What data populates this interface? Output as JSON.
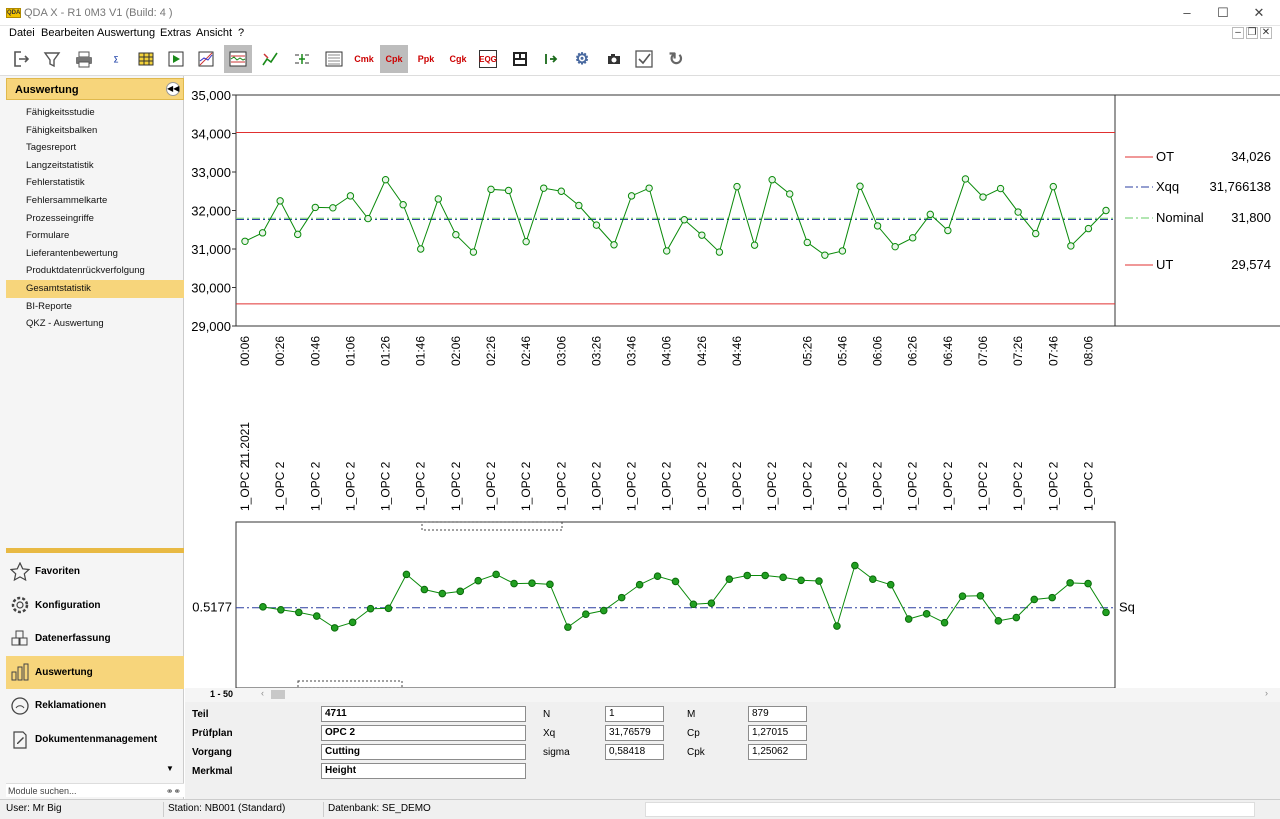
{
  "window": {
    "title": "QDA X - R1 0M3 V1 (Build: 4 )",
    "logo_text": "QDA"
  },
  "menu": [
    "Datei",
    "Bearbeiten",
    "Auswertung",
    "Extras",
    "Ansicht",
    "?"
  ],
  "toolbar_icons": [
    "exit-icon",
    "filter-icon",
    "print-icon",
    "data-icon",
    "table-icon",
    "play-icon",
    "chart-icon",
    "control-chart-icon",
    "run-chart-icon",
    "histogram-icon",
    "value-chart-icon",
    "cmk-icon",
    "cpk-icon",
    "ppk-icon",
    "cgk-icon",
    "eqg-icon",
    "report-icon",
    "export-icon",
    "settings-icon",
    "camera-icon",
    "checkbox-icon",
    "refresh-icon"
  ],
  "toolbar_text": {
    "cmk": "Cmk",
    "cpk": "Cpk",
    "ppk": "Ppk",
    "cgk": "Cgk",
    "eqg": "EQG"
  },
  "sidebar": {
    "title": "Auswertung",
    "items": [
      "Fähigkeitsstudie",
      "Fähigkeitsbalken",
      "Tagesreport",
      "Langzeitstatistik",
      "Fehlerstatistik",
      "Fehlersammelkarte",
      "Prozesseingriffe",
      "Formulare",
      "Lieferantenbewertung",
      "Produktdatenrückverfolgung",
      "Gesamtstatistik",
      "BI-Reporte",
      "QKZ - Auswertung"
    ],
    "selected": "Gesamtstatistik",
    "modules": [
      {
        "label": "Favoriten",
        "icon": "star-icon"
      },
      {
        "label": "Konfiguration",
        "icon": "gear-icon"
      },
      {
        "label": "Datenerfassung",
        "icon": "cubes-icon"
      },
      {
        "label": "Auswertung",
        "icon": "bar-chart-icon"
      },
      {
        "label": "Reklamationen",
        "icon": "complaint-icon"
      },
      {
        "label": "Dokumentenmanagement",
        "icon": "document-icon"
      }
    ],
    "selected_module": "Auswertung",
    "search_placeholder": "Module suchen..."
  },
  "chart_data": [
    {
      "type": "line",
      "ylim": [
        29,
        35
      ],
      "yticks": [
        "35,000",
        "34,000",
        "33,000",
        "32,000",
        "31,000",
        "30,000",
        "29,000"
      ],
      "ytick_values": [
        35,
        34,
        33,
        32,
        31,
        30,
        29
      ],
      "xtick_labels": [
        "00:06",
        "00:26",
        "00:46",
        "01:06",
        "01:26",
        "01:46",
        "02:06",
        "02:26",
        "02:46",
        "03:06",
        "03:26",
        "03:46",
        "04:06",
        "04:26",
        "04:46",
        "",
        "05:26",
        "05:46",
        "06:06",
        "06:26",
        "06:46",
        "07:06",
        "07:26",
        "07:46",
        "08:06"
      ],
      "first_date_label": "11.2021",
      "category_label": "1_OPC 2",
      "limits": [
        {
          "name": "OT",
          "value": 34.026,
          "label": "34,026",
          "style": "solid",
          "color": "#e03030"
        },
        {
          "name": "Xqq",
          "value": 31.766138,
          "label": "31,766138",
          "style": "dashdot",
          "color": "#2b3fa0"
        },
        {
          "name": "Nominal",
          "value": 31.8,
          "label": "31,800",
          "style": "dashdot",
          "color": "#66cc66"
        },
        {
          "name": "UT",
          "value": 29.574,
          "label": "29,574",
          "style": "solid",
          "color": "#e03030"
        }
      ],
      "values": [
        31.2,
        31.42,
        32.25,
        31.38,
        32.08,
        32.07,
        32.38,
        31.79,
        32.8,
        32.15,
        31.0,
        32.3,
        31.37,
        30.92,
        32.55,
        32.52,
        31.19,
        32.58,
        32.5,
        32.13,
        31.62,
        31.11,
        32.38,
        32.58,
        30.95,
        31.76,
        31.36,
        30.92,
        32.62,
        31.1,
        32.8,
        32.43,
        31.17,
        30.84,
        30.95,
        32.63,
        31.6,
        31.06,
        31.29,
        31.9,
        31.48,
        32.82,
        32.35,
        32.57,
        31.96,
        31.4,
        32.62,
        31.08,
        31.53,
        32.0
      ]
    },
    {
      "type": "line",
      "reference": {
        "name": "Sq",
        "label": "0.5177",
        "value": 0.5177
      },
      "ylim": [
        0.3,
        0.75
      ],
      "values": [
        null,
        0.52,
        0.512,
        0.505,
        0.495,
        0.463,
        0.478,
        0.515,
        0.516,
        0.608,
        0.567,
        0.556,
        0.562,
        0.591,
        0.608,
        0.583,
        0.584,
        0.581,
        0.465,
        0.5,
        0.51,
        0.545,
        0.58,
        0.603,
        0.589,
        0.527,
        0.53,
        0.595,
        0.605,
        0.605,
        0.6,
        0.592,
        0.59,
        0.468,
        0.632,
        0.595,
        0.58,
        0.487,
        0.501,
        0.477,
        0.549,
        0.55,
        0.482,
        0.491,
        0.54,
        0.545,
        0.585,
        0.583,
        0.505
      ]
    }
  ],
  "pager": {
    "range": "1 - 50"
  },
  "info": {
    "teil_label": "Teil",
    "teil": "4711",
    "pruefplan_label": "Prüfplan",
    "pruefplan": "OPC 2",
    "vorgang_label": "Vorgang",
    "vorgang": "Cutting",
    "merkmal_label": "Merkmal",
    "merkmal": "Height",
    "n_label": "N",
    "n": "1",
    "xq_label": "Xq",
    "xq": "31,76579",
    "sigma_label": "sigma",
    "sigma": "0,58418",
    "m_label": "M",
    "m": "879",
    "cp_label": "Cp",
    "cp": "1,27015",
    "cpk_label": "Cpk",
    "cpk": "1,25062"
  },
  "status": {
    "user": "User: Mr Big",
    "station": "Station: NB001 (Standard)",
    "database": "Datenbank: SE_DEMO"
  },
  "colors": {
    "accent": "#f7d57b",
    "series": "#0a8a0a",
    "marker": "#22a022"
  }
}
